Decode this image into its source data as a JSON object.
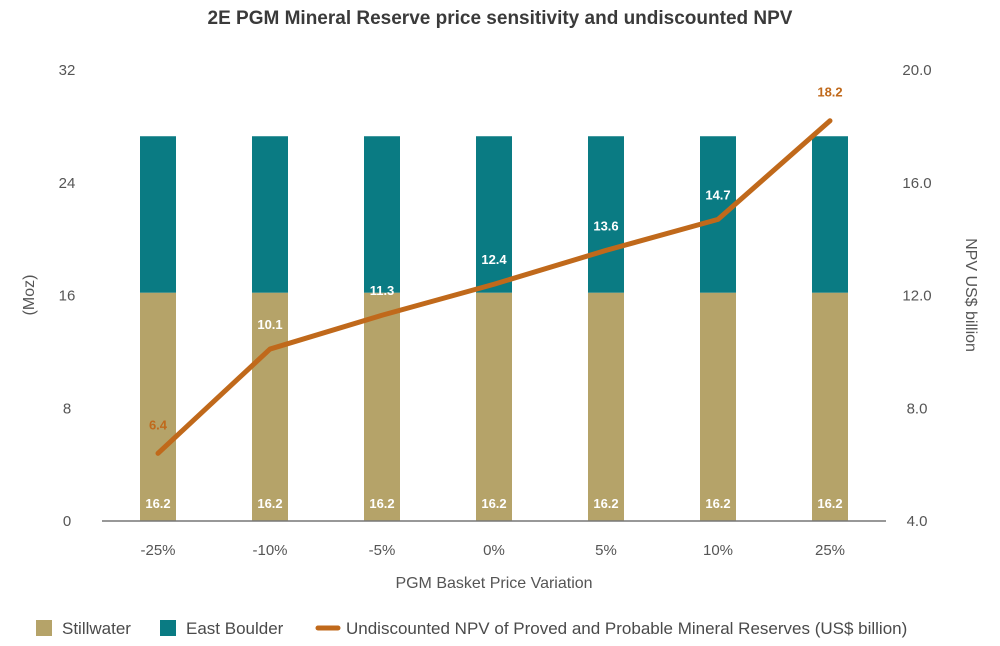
{
  "chart_data": {
    "type": "bar+line",
    "title": "2E PGM Mineral Reserve price sensitivity and undiscounted NPV",
    "xlabel": "PGM Basket Price Variation",
    "ylabel_left": "(Moz)",
    "ylabel_right": "NPV US$ billion",
    "categories": [
      "-25%",
      "-10%",
      "-5%",
      "0%",
      "5%",
      "10%",
      "25%"
    ],
    "left_ylim": [
      0,
      32
    ],
    "left_ticks": [
      "0",
      "8",
      "16",
      "24",
      "32"
    ],
    "right_ylim": [
      4,
      20
    ],
    "right_ticks": [
      "4.0",
      "8.0",
      "12.0",
      "16.0",
      "20.0"
    ],
    "series": [
      {
        "name": "Stillwater",
        "kind": "stacked-bar",
        "axis": "left",
        "color": "#b5a369",
        "values": [
          16.2,
          16.2,
          16.2,
          16.2,
          16.2,
          16.2,
          16.2
        ],
        "labels": [
          "16.2",
          "16.2",
          "16.2",
          "16.2",
          "16.2",
          "16.2",
          "16.2"
        ]
      },
      {
        "name": "East Boulder",
        "kind": "stacked-bar",
        "axis": "left",
        "color": "#0a7b83",
        "values": [
          11.1,
          11.1,
          11.1,
          11.1,
          11.1,
          11.1,
          11.1
        ]
      },
      {
        "name": "Undiscounted NPV of Proved and Probable Mineral Reserves (US$ billion)",
        "kind": "line",
        "axis": "right",
        "color": "#c0691b",
        "values": [
          6.4,
          10.1,
          11.3,
          12.4,
          13.6,
          14.7,
          18.2
        ],
        "labels": [
          "6.4",
          "10.1",
          "11.3",
          "12.4",
          "13.6",
          "14.7",
          "18.2"
        ]
      }
    ],
    "legend": "bottom"
  }
}
